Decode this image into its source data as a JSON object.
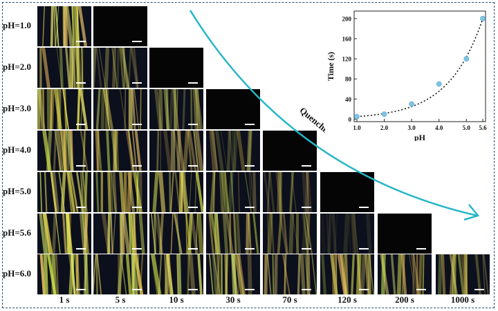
{
  "figure": {
    "row_labels": [
      "pH=1.0",
      "pH=2.0",
      "pH=3.0",
      "pH=4.0",
      "pH=5.0",
      "pH=5.6",
      "pH=6.0"
    ],
    "time_labels": [
      "1 s",
      "5 s",
      "10 s",
      "30 s",
      "70 s",
      "120 s",
      "200 s",
      "1000 s"
    ],
    "arrow_label": "Quenching",
    "panels_per_row": [
      2,
      3,
      4,
      5,
      6,
      7,
      8
    ],
    "brightness_rows": [
      [
        0.85,
        0.0
      ],
      [
        0.75,
        0.45,
        0.0
      ],
      [
        0.85,
        0.7,
        0.45,
        0.0
      ],
      [
        0.8,
        0.75,
        0.6,
        0.35,
        0.0
      ],
      [
        0.85,
        0.8,
        0.7,
        0.55,
        0.3,
        0.0
      ],
      [
        0.85,
        0.8,
        0.7,
        0.55,
        0.4,
        0.15,
        0.0
      ],
      [
        0.85,
        0.85,
        0.8,
        0.75,
        0.7,
        0.65,
        0.6,
        0.55
      ]
    ],
    "colors": {
      "arrow": "#26b6c7",
      "frame": "#2b4a7a",
      "marker": "#7fc4e4"
    }
  },
  "chart_data": {
    "type": "scatter",
    "title": "",
    "xlabel": "pH",
    "ylabel": "Time (s)",
    "x": [
      1.0,
      2.0,
      3.0,
      4.0,
      5.0,
      5.6
    ],
    "y": [
      5,
      10,
      30,
      70,
      120,
      200
    ],
    "xticks": [
      "1.0",
      "2.0",
      "3.0",
      "4.0",
      "5.0",
      "5.6"
    ],
    "yticks": [
      "0",
      "40",
      "80",
      "120",
      "160",
      "200"
    ],
    "ytick_values": [
      0,
      40,
      80,
      120,
      160,
      200
    ],
    "xlim": [
      0.9,
      5.7
    ],
    "ylim": [
      -5,
      215
    ],
    "fit_line": "dotted"
  }
}
